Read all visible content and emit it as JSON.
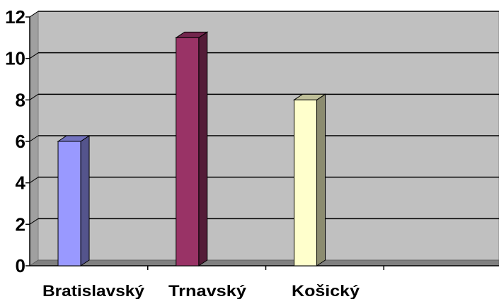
{
  "chart_data": {
    "type": "bar",
    "categories": [
      "Bratislavský",
      "Trnavský",
      "Košický",
      ""
    ],
    "values": [
      6,
      11,
      8,
      null
    ],
    "title": "",
    "xlabel": "",
    "ylabel": "",
    "ylim": [
      0,
      12
    ],
    "yticks": [
      "0",
      "2",
      "4",
      "6",
      "8",
      "10",
      "12"
    ],
    "grid": true,
    "legend": "none",
    "bar_colors": [
      "#9999FF",
      "#993366",
      "#FFFFCC"
    ],
    "plot_background": "#C0C0C0"
  }
}
